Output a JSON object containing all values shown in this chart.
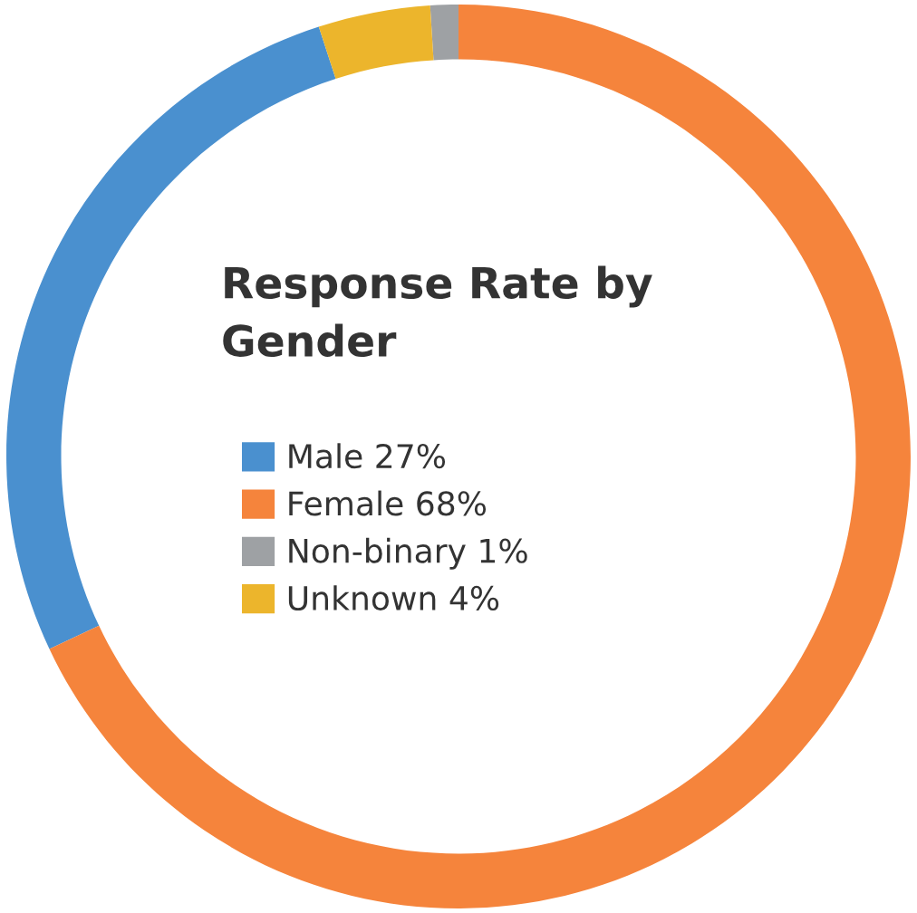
{
  "chart_data": {
    "type": "donut",
    "title": "Response Rate by Gender",
    "categories": [
      "Male",
      "Female",
      "Non-binary",
      "Unknown"
    ],
    "values": [
      27,
      68,
      1,
      4
    ],
    "value_labels": [
      "27%",
      "68%",
      "1%",
      "4%"
    ],
    "colors": [
      "#4a90cf",
      "#f5843c",
      "#9ea1a4",
      "#ecb52c"
    ],
    "legend": "center"
  }
}
